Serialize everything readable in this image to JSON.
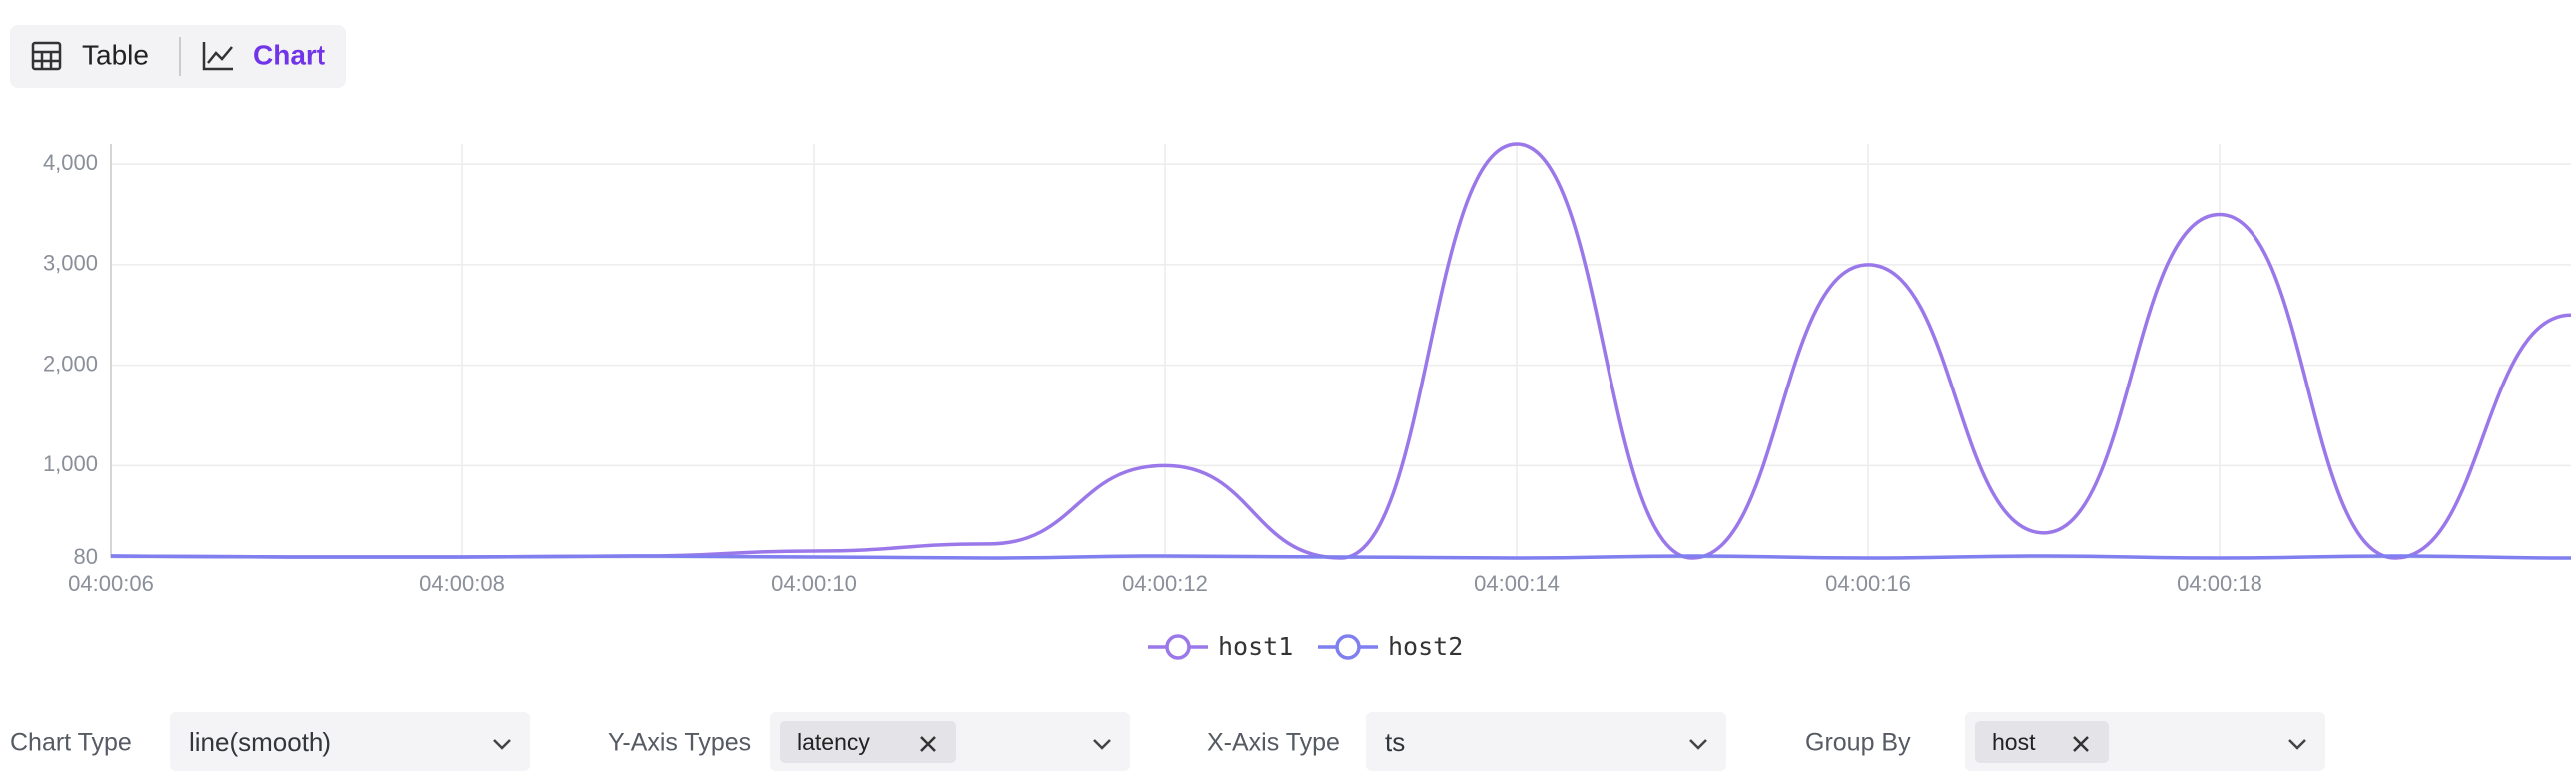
{
  "toolbar": {
    "table": "Table",
    "chart": "Chart"
  },
  "chart_data": {
    "type": "line",
    "categories": [
      "04:00:06",
      null,
      "04:00:08",
      null,
      "04:00:10",
      null,
      "04:00:12",
      null,
      "04:00:14",
      null,
      "04:00:16",
      null,
      "04:00:18",
      null,
      null
    ],
    "series": [
      {
        "name": "host1",
        "color": "#9b78ea",
        "values": [
          100,
          90,
          90,
          100,
          150,
          220,
          1000,
          80,
          4200,
          80,
          3000,
          330,
          3500,
          80,
          2500
        ]
      },
      {
        "name": "host2",
        "color": "#7f7ff0",
        "values": [
          100,
          90,
          90,
          100,
          90,
          80,
          100,
          90,
          80,
          100,
          80,
          100,
          80,
          100,
          80
        ]
      }
    ],
    "ylim": [
      80,
      4200
    ],
    "yticks": [
      80,
      {
        "value": 1000,
        "label": "1,000"
      },
      {
        "value": 2000,
        "label": "2,000"
      },
      {
        "value": 3000,
        "label": "3,000"
      },
      {
        "value": 4000,
        "label": "4,000"
      }
    ],
    "grid": true
  },
  "controls": [
    {
      "label": "Chart Type",
      "value": "line(smooth)"
    },
    {
      "label": "Y-Axis Types",
      "tag": "latency"
    },
    {
      "label": "X-Axis Type",
      "value": "ts"
    },
    {
      "label": "Group By",
      "tag": "host"
    }
  ]
}
